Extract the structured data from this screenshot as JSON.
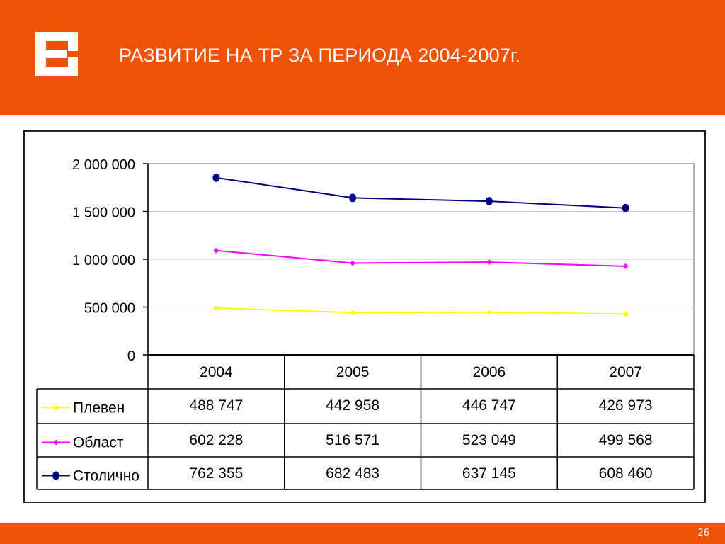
{
  "slide": {
    "title": "РАЗВИТИЕ НА ТР ЗА ПЕРИОДА 2004-2007г.",
    "page_number": "26",
    "logo_icon": "cez-e-logo-icon",
    "colors": {
      "header": "#EE5206",
      "logo": "#ffffff"
    }
  },
  "chart_data": {
    "type": "line",
    "categories": [
      "2004",
      "2005",
      "2006",
      "2007"
    ],
    "y_ticks": [
      "0",
      "500 000",
      "1 000 000",
      "1 500 000",
      "2 000 000"
    ],
    "ylim": [
      0,
      2000000
    ],
    "stacked": true,
    "grid": true,
    "legend": "data-table",
    "series": [
      {
        "name": "Плевен",
        "values": [
          488747,
          442958,
          446747,
          426973
        ],
        "labels": [
          "488 747",
          "442 958",
          "446 747",
          "426 973"
        ],
        "color": "#FFFF00",
        "marker": "diamond"
      },
      {
        "name": "Област",
        "values": [
          602228,
          516571,
          523049,
          499568
        ],
        "labels": [
          "602 228",
          "516 571",
          "523 049",
          "499 568"
        ],
        "color": "#FF00FF",
        "marker": "diamond"
      },
      {
        "name": "Столично",
        "values": [
          762355,
          682483,
          637145,
          608460
        ],
        "labels": [
          "762 355",
          "682 483",
          "637 145",
          "608 460"
        ],
        "color": "#000080",
        "marker": "circle"
      }
    ]
  }
}
